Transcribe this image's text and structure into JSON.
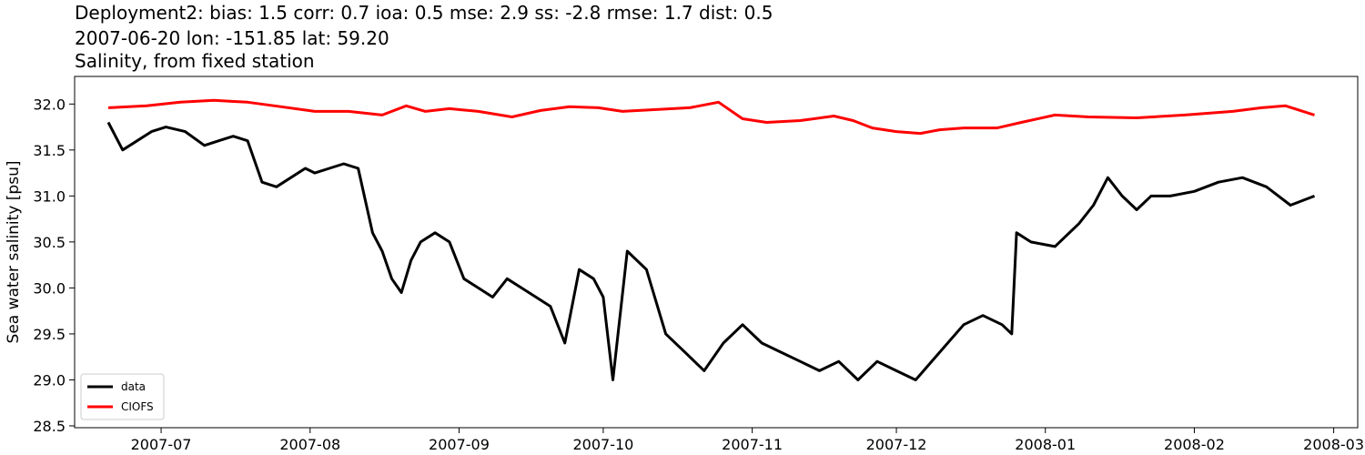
{
  "chart_data": {
    "type": "line",
    "title": [
      "Deployment2: bias: 1.5  corr: 0.7  ioa: 0.5  mse: 2.9  ss: -2.8  rmse: 1.7  dist: 0.5",
      "2007-06-20 lon: -151.85 lat: 59.20",
      "Salinity, from fixed station"
    ],
    "xlabel": "",
    "ylabel": "Sea water salinity [psu]",
    "x_ticks": [
      "2007-07",
      "2007-08",
      "2007-09",
      "2007-10",
      "2007-11",
      "2007-12",
      "2008-01",
      "2008-02",
      "2008-03"
    ],
    "y_ticks": [
      "28.5",
      "29.0",
      "29.5",
      "30.0",
      "30.5",
      "31.0",
      "31.5",
      "32.0"
    ],
    "xlim": [
      "2007-06-13",
      "2008-03-06"
    ],
    "ylim": [
      28.48,
      32.3
    ],
    "grid": false,
    "legend_position": "lower-left",
    "series": [
      {
        "name": "data",
        "color": "#000000",
        "x": [
          "2007-06-20",
          "2007-06-23",
          "2007-06-26",
          "2007-06-29",
          "2007-07-02",
          "2007-07-06",
          "2007-07-10",
          "2007-07-13",
          "2007-07-16",
          "2007-07-19",
          "2007-07-22",
          "2007-07-25",
          "2007-07-28",
          "2007-07-31",
          "2007-08-02",
          "2007-08-05",
          "2007-08-08",
          "2007-08-11",
          "2007-08-14",
          "2007-08-16",
          "2007-08-18",
          "2007-08-20",
          "2007-08-22",
          "2007-08-24",
          "2007-08-27",
          "2007-08-30",
          "2007-09-02",
          "2007-09-05",
          "2007-09-08",
          "2007-09-11",
          "2007-09-14",
          "2007-09-17",
          "2007-09-20",
          "2007-09-23",
          "2007-09-26",
          "2007-09-29",
          "2007-10-01",
          "2007-10-03",
          "2007-10-06",
          "2007-10-10",
          "2007-10-14",
          "2007-10-18",
          "2007-10-22",
          "2007-10-26",
          "2007-10-30",
          "2007-11-03",
          "2007-11-07",
          "2007-11-11",
          "2007-11-15",
          "2007-11-19",
          "2007-11-23",
          "2007-11-27",
          "2007-12-01",
          "2007-12-05",
          "2007-12-10",
          "2007-12-15",
          "2007-12-19",
          "2007-12-23",
          "2007-12-25",
          "2007-12-26",
          "2007-12-29",
          "2008-01-03",
          "2008-01-08",
          "2008-01-11",
          "2008-01-14",
          "2008-01-17",
          "2008-01-20",
          "2008-01-23",
          "2008-01-27",
          "2008-02-01",
          "2008-02-06",
          "2008-02-11",
          "2008-02-16",
          "2008-02-21",
          "2008-02-26"
        ],
        "y": [
          31.8,
          31.5,
          31.6,
          31.7,
          31.75,
          31.7,
          31.55,
          31.6,
          31.65,
          31.6,
          31.15,
          31.1,
          31.2,
          31.3,
          31.25,
          31.3,
          31.35,
          31.3,
          30.6,
          30.4,
          30.1,
          29.95,
          30.3,
          30.5,
          30.6,
          30.5,
          30.1,
          30.0,
          29.9,
          30.1,
          30.0,
          29.9,
          29.8,
          29.4,
          30.2,
          30.1,
          29.9,
          29.0,
          30.4,
          30.2,
          29.5,
          29.3,
          29.1,
          29.4,
          29.6,
          29.4,
          29.3,
          29.2,
          29.1,
          29.2,
          29.0,
          29.2,
          29.1,
          29.0,
          29.3,
          29.6,
          29.7,
          29.6,
          29.5,
          30.6,
          30.5,
          30.45,
          30.7,
          30.9,
          31.2,
          31.0,
          30.85,
          31.0,
          31.0,
          31.05,
          31.15,
          31.2,
          31.1,
          30.9,
          31.0
        ]
      },
      {
        "name": "CIOFS",
        "color": "#ff0000",
        "x": [
          "2007-06-20",
          "2007-06-28",
          "2007-07-05",
          "2007-07-12",
          "2007-07-19",
          "2007-07-26",
          "2007-08-02",
          "2007-08-09",
          "2007-08-16",
          "2007-08-21",
          "2007-08-25",
          "2007-08-30",
          "2007-09-05",
          "2007-09-12",
          "2007-09-18",
          "2007-09-24",
          "2007-09-30",
          "2007-10-05",
          "2007-10-12",
          "2007-10-19",
          "2007-10-25",
          "2007-10-30",
          "2007-11-04",
          "2007-11-11",
          "2007-11-18",
          "2007-11-22",
          "2007-11-26",
          "2007-12-01",
          "2007-12-06",
          "2007-12-10",
          "2007-12-15",
          "2007-12-22",
          "2007-12-27",
          "2008-01-03",
          "2008-01-10",
          "2008-01-20",
          "2008-01-30",
          "2008-02-09",
          "2008-02-15",
          "2008-02-20",
          "2008-02-26"
        ],
        "y": [
          31.96,
          31.98,
          32.02,
          32.04,
          32.02,
          31.97,
          31.92,
          31.92,
          31.88,
          31.98,
          31.92,
          31.95,
          31.92,
          31.86,
          31.93,
          31.97,
          31.96,
          31.92,
          31.94,
          31.96,
          32.02,
          31.84,
          31.8,
          31.82,
          31.87,
          31.82,
          31.74,
          31.7,
          31.68,
          31.72,
          31.74,
          31.74,
          31.8,
          31.88,
          31.86,
          31.85,
          31.88,
          31.92,
          31.96,
          31.98,
          31.88
        ]
      }
    ]
  }
}
